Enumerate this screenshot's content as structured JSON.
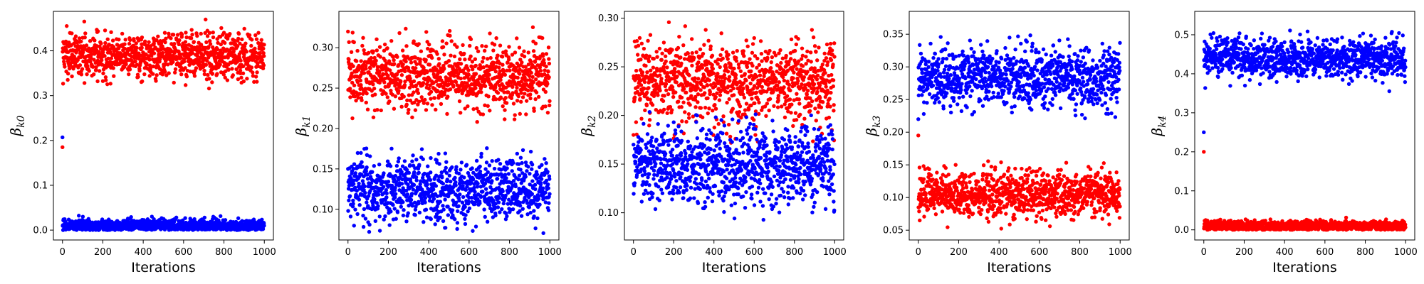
{
  "chart_data": [
    {
      "type": "scatter",
      "xlabel": "Iterations",
      "ylabel_symbol": "β",
      "ylabel_subscript": "k0",
      "xlim": [
        -45,
        1045
      ],
      "ylim": [
        -0.022,
        0.488
      ],
      "xticks": [
        0,
        200,
        400,
        600,
        800,
        1000
      ],
      "yticks": [
        0.0,
        0.1,
        0.2,
        0.3,
        0.4
      ],
      "yticklabels": [
        "0.0",
        "0.1",
        "0.2",
        "0.3",
        "0.4"
      ],
      "grid": false,
      "series": [
        {
          "color": "#ff0000",
          "n_points": 1000,
          "start_value": 0.185,
          "mean": 0.39,
          "spread": 0.025,
          "min": 0.3,
          "max": 0.47
        },
        {
          "color": "#0000ff",
          "n_points": 1000,
          "start_value": 0.207,
          "mean": 0.01,
          "spread": 0.007,
          "min": 0.0,
          "max": 0.04
        }
      ]
    },
    {
      "type": "scatter",
      "xlabel": "Iterations",
      "ylabel_symbol": "β",
      "ylabel_subscript": "k1",
      "xlim": [
        -45,
        1045
      ],
      "ylim": [
        0.062,
        0.345
      ],
      "xticks": [
        0,
        200,
        400,
        600,
        800,
        1000
      ],
      "yticks": [
        0.1,
        0.15,
        0.2,
        0.25,
        0.3
      ],
      "yticklabels": [
        "0.10",
        "0.15",
        "0.20",
        "0.25",
        "0.30"
      ],
      "grid": false,
      "series": [
        {
          "color": "#ff0000",
          "n_points": 1000,
          "start_value": 0.32,
          "mean": 0.265,
          "spread": 0.02,
          "min": 0.2,
          "max": 0.33
        },
        {
          "color": "#0000ff",
          "n_points": 1000,
          "start_value": 0.15,
          "mean": 0.125,
          "spread": 0.02,
          "min": 0.07,
          "max": 0.185
        }
      ]
    },
    {
      "type": "scatter",
      "xlabel": "Iterations",
      "ylabel_symbol": "β",
      "ylabel_subscript": "k2",
      "xlim": [
        -45,
        1045
      ],
      "ylim": [
        0.072,
        0.307
      ],
      "xticks": [
        0,
        200,
        400,
        600,
        800,
        1000
      ],
      "yticks": [
        0.1,
        0.15,
        0.2,
        0.25,
        0.3
      ],
      "yticklabels": [
        "0.10",
        "0.15",
        "0.20",
        "0.25",
        "0.30"
      ],
      "grid": false,
      "series": [
        {
          "color": "#ff0000",
          "n_points": 1000,
          "start_value": 0.18,
          "mean": 0.235,
          "spread": 0.02,
          "min": 0.17,
          "max": 0.3
        },
        {
          "color": "#0000ff",
          "n_points": 1000,
          "start_value": 0.17,
          "mean": 0.148,
          "spread": 0.02,
          "min": 0.08,
          "max": 0.215
        }
      ]
    },
    {
      "type": "scatter",
      "xlabel": "Iterations",
      "ylabel_symbol": "β",
      "ylabel_subscript": "k3",
      "xlim": [
        -45,
        1045
      ],
      "ylim": [
        0.035,
        0.385
      ],
      "xticks": [
        0,
        200,
        400,
        600,
        800,
        1000
      ],
      "yticks": [
        0.05,
        0.1,
        0.15,
        0.2,
        0.25,
        0.3,
        0.35
      ],
      "yticklabels": [
        "0.05",
        "0.10",
        "0.15",
        "0.20",
        "0.25",
        "0.30",
        "0.35"
      ],
      "grid": false,
      "series": [
        {
          "color": "#0000ff",
          "n_points": 1000,
          "start_value": 0.22,
          "mean": 0.285,
          "spread": 0.022,
          "min": 0.22,
          "max": 0.37
        },
        {
          "color": "#ff0000",
          "n_points": 1000,
          "start_value": 0.195,
          "mean": 0.105,
          "spread": 0.018,
          "min": 0.045,
          "max": 0.16
        }
      ]
    },
    {
      "type": "scatter",
      "xlabel": "Iterations",
      "ylabel_symbol": "β",
      "ylabel_subscript": "k4",
      "xlim": [
        -45,
        1045
      ],
      "ylim": [
        -0.026,
        0.56
      ],
      "xticks": [
        0,
        200,
        400,
        600,
        800,
        1000
      ],
      "yticks": [
        0.0,
        0.1,
        0.2,
        0.3,
        0.4,
        0.5
      ],
      "yticklabels": [
        "0.0",
        "0.1",
        "0.2",
        "0.3",
        "0.4",
        "0.5"
      ],
      "grid": false,
      "series": [
        {
          "color": "#0000ff",
          "n_points": 1000,
          "start_value": 0.25,
          "mean": 0.44,
          "spread": 0.025,
          "min": 0.35,
          "max": 0.53
        },
        {
          "color": "#ff0000",
          "n_points": 1000,
          "start_value": 0.2,
          "mean": 0.01,
          "spread": 0.007,
          "min": 0.0,
          "max": 0.055
        }
      ]
    }
  ]
}
